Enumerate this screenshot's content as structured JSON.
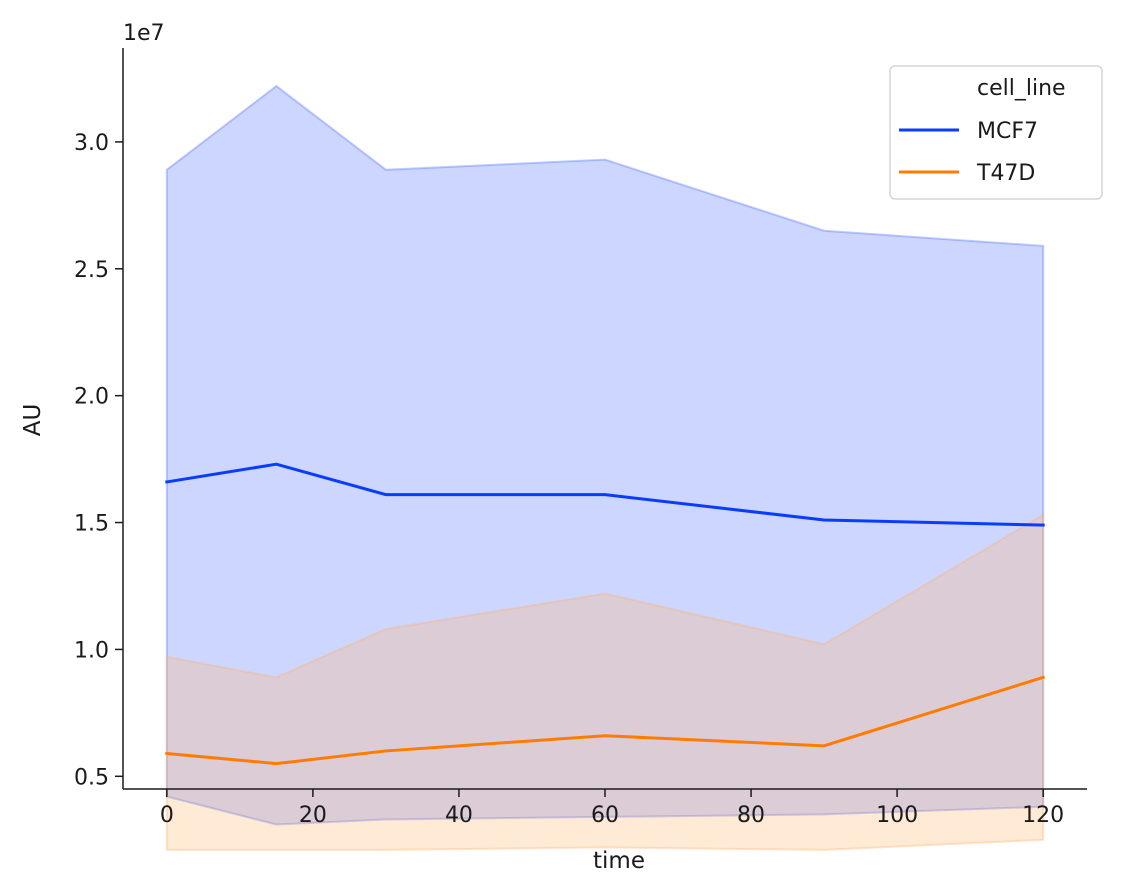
{
  "chart_data": {
    "type": "line",
    "xlabel": "time",
    "ylabel": "AU",
    "y_offset_label": "1e7",
    "y_scale_factor": 10000000,
    "xlim": [
      -6,
      126
    ],
    "ylim": [
      0.45,
      3.37
    ],
    "x_ticks": [
      0,
      20,
      40,
      60,
      80,
      100,
      120
    ],
    "y_ticks": [
      0.5,
      1.0,
      1.5,
      2.0,
      2.5,
      3.0
    ],
    "y_tick_labels": [
      "0.5",
      "1.0",
      "1.5",
      "2.0",
      "2.5",
      "3.0"
    ],
    "x": [
      0,
      15,
      30,
      60,
      90,
      120
    ],
    "legend": {
      "title": "cell_line",
      "placement": "top-right"
    },
    "grid": false,
    "series": [
      {
        "name": "MCF7",
        "color": "#0a3cff",
        "band_color": "#4a6cff",
        "values": [
          1.66,
          1.73,
          1.61,
          1.61,
          1.51,
          1.49
        ],
        "band_low": [
          0.42,
          0.31,
          0.33,
          0.34,
          0.35,
          0.38
        ],
        "band_high": [
          2.89,
          3.22,
          2.89,
          2.93,
          2.65,
          2.59
        ]
      },
      {
        "name": "T47D",
        "color": "#ff7c00",
        "band_color": "#ffb36b",
        "values": [
          0.59,
          0.55,
          0.6,
          0.66,
          0.62,
          0.89
        ],
        "band_low": [
          0.21,
          0.21,
          0.21,
          0.22,
          0.21,
          0.25
        ],
        "band_high": [
          0.97,
          0.89,
          1.08,
          1.22,
          1.02,
          1.53
        ]
      }
    ]
  }
}
